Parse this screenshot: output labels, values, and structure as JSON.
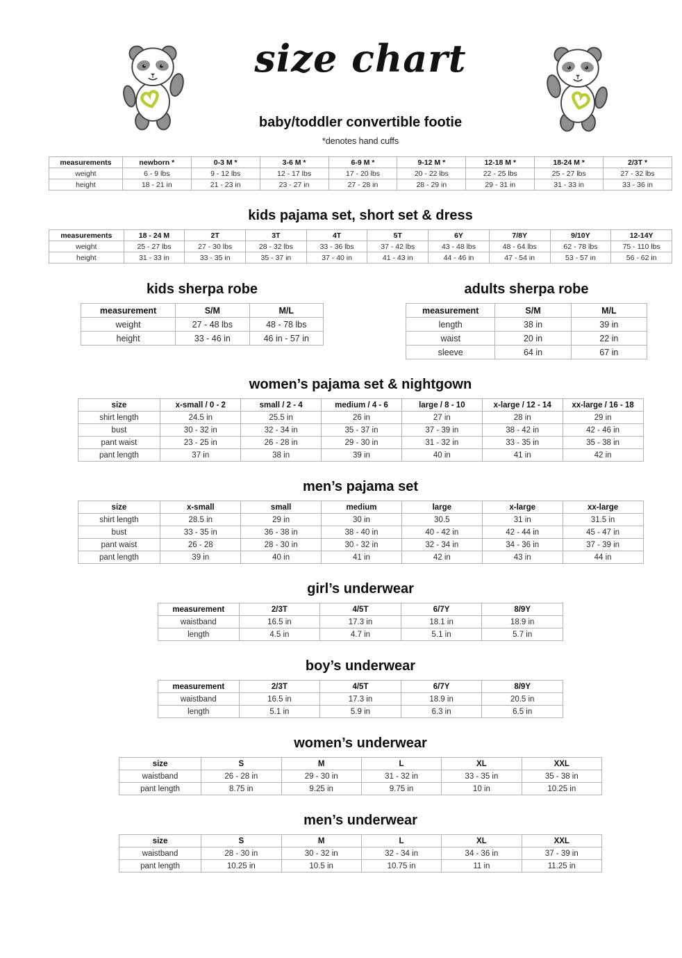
{
  "header": {
    "title": "size chart",
    "left_panda_icon": "panda-illustration",
    "right_panda_icon": "panda-illustration",
    "panda_gray": "#8f8f8f",
    "panda_outline": "#3f3f3f",
    "heart_green": "#b9cc34"
  },
  "tables": [
    {
      "id": "baby-toddler-convertible-footie",
      "title": "baby/toddler convertible footie",
      "note": "*denotes hand cuffs",
      "columns": [
        "measurements",
        "newborn *",
        "0-3 M *",
        "3-6 M *",
        "6-9 M *",
        "9-12 M *",
        "12-18 M *",
        "18-24 M *",
        "2/3T *"
      ],
      "rows": [
        [
          "weight",
          "6 - 9 lbs",
          "9 - 12 lbs",
          "12 - 17 lbs",
          "17 - 20 lbs",
          "20 - 22 lbs",
          "22 - 25 lbs",
          "25 - 27 lbs",
          "27 - 32 lbs"
        ],
        [
          "height",
          "18 - 21 in",
          "21 - 23 in",
          "23 - 27 in",
          "27 - 28 in",
          "28 - 29 in",
          "29 - 31 in",
          "31 - 33 in",
          "33 - 36 in"
        ]
      ]
    },
    {
      "id": "kids-pajama-set-short-set-dress",
      "title": "kids pajama set, short set & dress",
      "columns": [
        "measurements",
        "18 - 24 M",
        "2T",
        "3T",
        "4T",
        "5T",
        "6Y",
        "7/8Y",
        "9/10Y",
        "12-14Y"
      ],
      "rows": [
        [
          "weight",
          "25 - 27 lbs",
          "27 - 30 lbs",
          "28 - 32 lbs",
          "33 - 36 lbs",
          "37 - 42 lbs",
          "43 - 48 lbs",
          "48 - 64 lbs",
          "62 - 78 lbs",
          "75 - 110 lbs"
        ],
        [
          "height",
          "31 - 33 in",
          "33 - 35 in",
          "35 - 37 in",
          "37 - 40 in",
          "41 - 43 in",
          "44 - 46 in",
          "47 - 54 in",
          "53 - 57 in",
          "56 - 62 in"
        ]
      ]
    },
    {
      "id": "kids-sherpa-robe",
      "title": "kids sherpa robe",
      "columns": [
        "measurement",
        "S/M",
        "M/L"
      ],
      "rows": [
        [
          "weight",
          "27 - 48 lbs",
          "48 - 78 lbs"
        ],
        [
          "height",
          "33 - 46 in",
          "46 in - 57 in"
        ]
      ]
    },
    {
      "id": "adults-sherpa-robe",
      "title": "adults sherpa robe",
      "columns": [
        "measurement",
        "S/M",
        "M/L"
      ],
      "rows": [
        [
          "length",
          "38 in",
          "39 in"
        ],
        [
          "waist",
          "20 in",
          "22 in"
        ],
        [
          "sleeve",
          "64 in",
          "67 in"
        ]
      ]
    },
    {
      "id": "womens-pajama-set-nightgown",
      "title": "women’s pajama set & nightgown",
      "columns": [
        "size",
        "x-small / 0 - 2",
        "small / 2 - 4",
        "medium / 4 - 6",
        "large / 8 - 10",
        "x-large / 12 - 14",
        "xx-large / 16 - 18"
      ],
      "rows": [
        [
          "shirt length",
          "24.5 in",
          "25.5 in",
          "26 in",
          "27 in",
          "28 in",
          "29 in"
        ],
        [
          "bust",
          "30 - 32 in",
          "32 - 34 in",
          "35 - 37 in",
          "37 - 39 in",
          "38 - 42 in",
          "42 - 46 in"
        ],
        [
          "pant waist",
          "23 - 25 in",
          "26 - 28 in",
          "29 - 30 in",
          "31 - 32 in",
          "33 - 35 in",
          "35 - 38 in"
        ],
        [
          "pant length",
          "37 in",
          "38 in",
          "39 in",
          "40 in",
          "41 in",
          "42 in"
        ]
      ]
    },
    {
      "id": "mens-pajama-set",
      "title": "men’s pajama set",
      "columns": [
        "size",
        "x-small",
        "small",
        "medium",
        "large",
        "x-large",
        "xx-large"
      ],
      "rows": [
        [
          "shirt length",
          "28.5 in",
          "29 in",
          "30 in",
          "30.5",
          "31 in",
          "31.5 in"
        ],
        [
          "bust",
          "33 - 35 in",
          "36 - 38 in",
          "38 - 40 in",
          "40 - 42 in",
          "42 - 44 in",
          "45 - 47 in"
        ],
        [
          "pant waist",
          "26 - 28",
          "28 - 30 in",
          "30 - 32 in",
          "32 - 34 in",
          "34 - 36 in",
          "37 - 39 in"
        ],
        [
          "pant length",
          "39 in",
          "40 in",
          "41 in",
          "42 in",
          "43 in",
          "44 in"
        ]
      ]
    },
    {
      "id": "girls-underwear",
      "title": "girl’s underwear",
      "columns": [
        "measurement",
        "2/3T",
        "4/5T",
        "6/7Y",
        "8/9Y"
      ],
      "rows": [
        [
          "waistband",
          "16.5 in",
          "17.3 in",
          "18.1 in",
          "18.9 in"
        ],
        [
          "length",
          "4.5 in",
          "4.7 in",
          "5.1 in",
          "5.7 in"
        ]
      ]
    },
    {
      "id": "boys-underwear",
      "title": "boy’s underwear",
      "columns": [
        "measurement",
        "2/3T",
        "4/5T",
        "6/7Y",
        "8/9Y"
      ],
      "rows": [
        [
          "waistband",
          "16.5 in",
          "17.3 in",
          "18.9 in",
          "20.5 in"
        ],
        [
          "length",
          "5.1 in",
          "5.9 in",
          "6.3 in",
          "6.5 in"
        ]
      ]
    },
    {
      "id": "womens-underwear",
      "title": "women’s underwear",
      "columns": [
        "size",
        "S",
        "M",
        "L",
        "XL",
        "XXL"
      ],
      "rows": [
        [
          "waistband",
          "26 - 28 in",
          "29 - 30 in",
          "31 - 32 in",
          "33 - 35 in",
          "35 - 38 in"
        ],
        [
          "pant length",
          "8.75 in",
          "9.25 in",
          "9.75 in",
          "10 in",
          "10.25 in"
        ]
      ]
    },
    {
      "id": "mens-underwear",
      "title": "men’s underwear",
      "columns": [
        "size",
        "S",
        "M",
        "L",
        "XL",
        "XXL"
      ],
      "rows": [
        [
          "waistband",
          "28 - 30 in",
          "30 - 32 in",
          "32 - 34 in",
          "34 - 36 in",
          "37 - 39 in"
        ],
        [
          "pant length",
          "10.25 in",
          "10.5 in",
          "10.75 in",
          "11 in",
          "11.25 in"
        ]
      ]
    }
  ]
}
